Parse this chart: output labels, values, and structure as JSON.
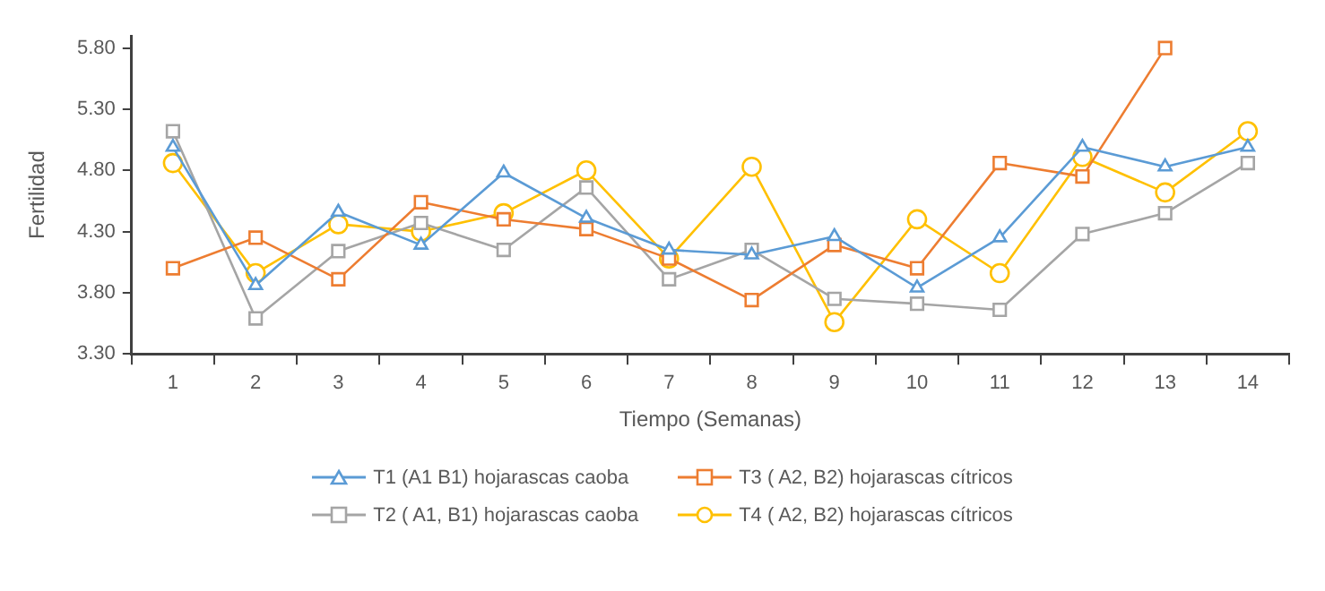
{
  "chart_data": {
    "type": "line",
    "xlabel": "Tiempo (Semanas)",
    "ylabel": "Fertilidad",
    "categories": [
      "1",
      "2",
      "3",
      "4",
      "5",
      "6",
      "7",
      "8",
      "9",
      "10",
      "11",
      "12",
      "13",
      "14"
    ],
    "series": [
      {
        "name": "T1 (A1 B1) hojarascas caoba",
        "color": "#5b9bd5",
        "marker": "triangle",
        "values": [
          4.99,
          3.86,
          4.46,
          4.19,
          4.78,
          4.41,
          4.15,
          4.11,
          4.26,
          3.84,
          4.25,
          4.99,
          4.83,
          4.99
        ]
      },
      {
        "name": "T3 ( A2, B2) hojarascas cítricos",
        "color": "#ed7d31",
        "marker": "square",
        "values": [
          4.0,
          4.25,
          3.91,
          4.54,
          4.4,
          4.32,
          4.08,
          3.74,
          4.19,
          4.0,
          4.86,
          4.75,
          5.8,
          null
        ]
      },
      {
        "name": "T2 ( A1, B1) hojarascas caoba",
        "color": "#a5a5a5",
        "marker": "square",
        "values": [
          5.12,
          3.59,
          4.14,
          4.37,
          4.15,
          4.66,
          3.91,
          4.15,
          3.75,
          3.71,
          3.66,
          4.28,
          4.45,
          4.86
        ]
      },
      {
        "name": "T4 ( A2, B2) hojarascas cítricos",
        "color": "#ffc000",
        "marker": "circle",
        "values": [
          4.86,
          3.96,
          4.36,
          4.3,
          4.45,
          4.8,
          4.08,
          4.83,
          3.56,
          4.4,
          3.96,
          4.91,
          4.62,
          5.12
        ]
      }
    ],
    "ylim": [
      3.3,
      5.9
    ],
    "yticks": [
      {
        "value": 3.3,
        "label": "3.30"
      },
      {
        "value": 3.8,
        "label": "3.80"
      },
      {
        "value": 4.3,
        "label": "4.30"
      },
      {
        "value": 4.8,
        "label": "4.80"
      },
      {
        "value": 5.3,
        "label": "5.30"
      },
      {
        "value": 5.8,
        "label": "5.80"
      }
    ],
    "grid": false,
    "legend": "bottom"
  }
}
